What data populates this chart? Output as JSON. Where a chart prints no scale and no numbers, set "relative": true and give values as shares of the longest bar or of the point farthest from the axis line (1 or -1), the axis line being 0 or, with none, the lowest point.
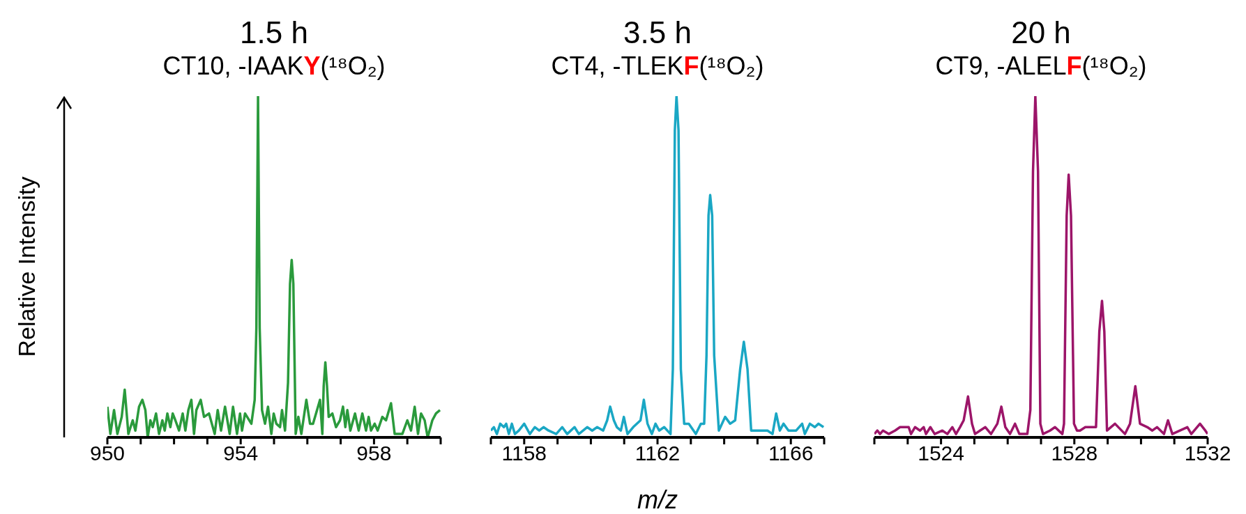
{
  "chart_data": [
    {
      "type": "line",
      "title": "1.5 h",
      "subtitle": "CT10, -IAAKY(¹⁸O₂)",
      "ylabel": "Relative Intensity",
      "relative": true,
      "xlim": [
        950,
        960
      ],
      "xticks": [
        950,
        {
          "value": 951,
          "label": null
        },
        {
          "value": 952,
          "label": null
        },
        {
          "value": 953,
          "label": null
        },
        954,
        {
          "value": 955,
          "label": null
        },
        {
          "value": 956,
          "label": null
        },
        {
          "value": 957,
          "label": null
        },
        958,
        {
          "value": 959,
          "label": null
        },
        {
          "value": 960,
          "label": null
        }
      ],
      "series": [
        {
          "color": "#2a9a3c",
          "x": [
            950.0,
            950.09,
            950.2,
            950.3,
            950.43,
            950.52,
            950.63,
            950.76,
            950.84,
            950.95,
            951.05,
            951.14,
            951.21,
            951.29,
            951.36,
            951.46,
            951.55,
            951.65,
            951.72,
            951.8,
            951.89,
            951.96,
            952.04,
            952.15,
            952.26,
            952.34,
            952.43,
            952.52,
            952.6,
            952.67,
            952.8,
            952.9,
            953.05,
            953.22,
            953.31,
            953.41,
            953.53,
            953.67,
            953.77,
            953.89,
            953.98,
            954.04,
            954.13,
            954.32,
            954.42,
            954.47,
            954.52,
            954.57,
            954.64,
            954.73,
            954.82,
            954.92,
            954.99,
            955.07,
            955.18,
            955.24,
            955.33,
            955.42,
            955.48,
            955.53,
            955.58,
            955.65,
            955.73,
            955.82,
            955.97,
            956.08,
            956.17,
            956.26,
            956.38,
            956.45,
            956.49,
            956.54,
            956.59,
            956.64,
            956.75,
            956.86,
            956.98,
            957.07,
            957.14,
            957.2,
            957.29,
            957.43,
            957.54,
            957.65,
            957.76,
            957.84,
            957.91,
            958.02,
            958.11,
            958.25,
            958.36,
            958.51,
            958.62,
            958.74,
            958.85,
            959.0,
            959.11,
            959.22,
            959.32,
            959.41,
            959.52,
            959.61,
            959.75,
            959.86,
            959.98
          ],
          "values": [
            0.09,
            0.01,
            0.08,
            0.01,
            0.06,
            0.14,
            0.01,
            0.05,
            0.02,
            0.09,
            0.11,
            0.08,
            0.0,
            0.05,
            0.03,
            0.07,
            0.01,
            0.05,
            0.02,
            0.07,
            0.03,
            0.07,
            0.05,
            0.02,
            0.07,
            0.02,
            0.08,
            0.11,
            0.01,
            0.08,
            0.11,
            0.06,
            0.07,
            0.01,
            0.08,
            0.02,
            0.09,
            0.01,
            0.09,
            0.01,
            0.07,
            0.02,
            0.07,
            0.04,
            0.11,
            0.32,
            1.0,
            0.32,
            0.08,
            0.04,
            0.09,
            0.01,
            0.07,
            0.04,
            0.03,
            0.08,
            0.02,
            0.16,
            0.45,
            0.52,
            0.45,
            0.01,
            0.06,
            0.01,
            0.11,
            0.04,
            0.04,
            0.07,
            0.11,
            0.01,
            0.15,
            0.22,
            0.15,
            0.06,
            0.07,
            0.03,
            0.05,
            0.09,
            0.03,
            0.08,
            0.02,
            0.07,
            0.02,
            0.07,
            0.02,
            0.06,
            0.02,
            0.04,
            0.02,
            0.06,
            0.05,
            0.1,
            0.01,
            0.01,
            0.01,
            0.05,
            0.02,
            0.09,
            0.01,
            0.07,
            0.05,
            0.0,
            0.05,
            0.07,
            0.08
          ]
        }
      ]
    },
    {
      "type": "line",
      "title": "3.5 h",
      "subtitle": "CT4, -TLEKF(¹⁸O₂)",
      "xlabel": "m/z",
      "relative": true,
      "xlim": [
        1157,
        1167
      ],
      "xticks": [
        {
          "value": 1157,
          "label": null
        },
        1158,
        {
          "value": 1159,
          "label": null
        },
        {
          "value": 1160,
          "label": null
        },
        {
          "value": 1161,
          "label": null
        },
        1162,
        {
          "value": 1163,
          "label": null
        },
        {
          "value": 1164,
          "label": null
        },
        {
          "value": 1165,
          "label": null
        },
        1166,
        {
          "value": 1167,
          "label": null
        }
      ],
      "series": [
        {
          "color": "#1aa7c4",
          "x": [
            1157.0,
            1157.09,
            1157.18,
            1157.28,
            1157.39,
            1157.46,
            1157.54,
            1157.63,
            1157.72,
            1157.84,
            1158.0,
            1158.17,
            1158.32,
            1158.45,
            1158.58,
            1158.73,
            1158.96,
            1159.14,
            1159.29,
            1159.51,
            1159.64,
            1159.89,
            1160.04,
            1160.19,
            1160.37,
            1160.49,
            1160.58,
            1160.69,
            1160.78,
            1160.9,
            1160.99,
            1161.1,
            1161.27,
            1161.49,
            1161.59,
            1161.7,
            1161.83,
            1161.94,
            1162.05,
            1162.2,
            1162.39,
            1162.46,
            1162.52,
            1162.57,
            1162.63,
            1162.7,
            1162.8,
            1162.94,
            1163.15,
            1163.3,
            1163.4,
            1163.47,
            1163.53,
            1163.58,
            1163.64,
            1163.7,
            1163.84,
            1164.03,
            1164.18,
            1164.33,
            1164.48,
            1164.59,
            1164.7,
            1164.81,
            1165.0,
            1165.3,
            1165.45,
            1165.56,
            1165.67,
            1165.78,
            1165.93,
            1166.16,
            1166.34,
            1166.42,
            1166.57,
            1166.72,
            1166.83,
            1166.98
          ],
          "values": [
            0.02,
            0.03,
            0.01,
            0.04,
            0.03,
            0.04,
            0.01,
            0.04,
            0.01,
            0.02,
            0.04,
            0.01,
            0.03,
            0.02,
            0.03,
            0.02,
            0.01,
            0.03,
            0.01,
            0.03,
            0.01,
            0.03,
            0.02,
            0.03,
            0.02,
            0.05,
            0.09,
            0.05,
            0.03,
            0.02,
            0.06,
            0.01,
            0.03,
            0.05,
            0.11,
            0.04,
            0.01,
            0.04,
            0.02,
            0.03,
            0.01,
            0.2,
            0.9,
            1.0,
            0.9,
            0.2,
            0.04,
            0.04,
            0.01,
            0.04,
            0.04,
            0.24,
            0.65,
            0.71,
            0.65,
            0.24,
            0.02,
            0.06,
            0.04,
            0.05,
            0.2,
            0.28,
            0.2,
            0.02,
            0.02,
            0.02,
            0.01,
            0.07,
            0.02,
            0.04,
            0.02,
            0.02,
            0.04,
            0.01,
            0.04,
            0.03,
            0.04,
            0.03
          ]
        }
      ]
    },
    {
      "type": "line",
      "title": "20 h",
      "subtitle": "CT9, -ALELF(¹⁸O₂)",
      "relative": true,
      "xlim": [
        1522,
        1532
      ],
      "xticks": [
        {
          "value": 1522,
          "label": null
        },
        {
          "value": 1523,
          "label": null
        },
        1524,
        {
          "value": 1525,
          "label": null
        },
        {
          "value": 1526,
          "label": null
        },
        {
          "value": 1527,
          "label": null
        },
        1528,
        {
          "value": 1529,
          "label": null
        },
        {
          "value": 1530,
          "label": null
        },
        {
          "value": 1531,
          "label": null
        },
        1532
      ],
      "series": [
        {
          "color": "#9c1569",
          "x": [
            1522.0,
            1522.09,
            1522.17,
            1522.26,
            1522.43,
            1522.62,
            1522.77,
            1523.03,
            1523.1,
            1523.22,
            1523.37,
            1523.48,
            1523.55,
            1523.68,
            1523.81,
            1524.04,
            1524.19,
            1524.34,
            1524.45,
            1524.57,
            1524.68,
            1524.81,
            1524.93,
            1525.02,
            1525.17,
            1525.33,
            1525.5,
            1525.69,
            1525.81,
            1525.93,
            1526.07,
            1526.22,
            1526.35,
            1526.59,
            1526.68,
            1526.76,
            1526.83,
            1526.91,
            1526.98,
            1527.06,
            1527.27,
            1527.42,
            1527.64,
            1527.69,
            1527.77,
            1527.83,
            1527.9,
            1527.99,
            1528.08,
            1528.17,
            1528.33,
            1528.47,
            1528.65,
            1528.75,
            1528.83,
            1528.9,
            1528.98,
            1529.22,
            1529.52,
            1529.67,
            1529.83,
            1529.97,
            1530.19,
            1530.34,
            1530.48,
            1530.69,
            1530.81,
            1530.94,
            1531.17,
            1531.39,
            1531.51,
            1531.77,
            1531.93,
            1532.0
          ],
          "values": [
            0.01,
            0.02,
            0.01,
            0.02,
            0.01,
            0.02,
            0.03,
            0.03,
            0.01,
            0.03,
            0.02,
            0.03,
            0.01,
            0.03,
            0.01,
            0.02,
            0.01,
            0.03,
            0.01,
            0.03,
            0.05,
            0.12,
            0.04,
            0.01,
            0.02,
            0.03,
            0.01,
            0.04,
            0.09,
            0.03,
            0.01,
            0.04,
            0.01,
            0.01,
            0.08,
            0.78,
            1.0,
            0.78,
            0.04,
            0.01,
            0.02,
            0.03,
            0.01,
            0.04,
            0.65,
            0.77,
            0.65,
            0.04,
            0.02,
            0.02,
            0.03,
            0.03,
            0.03,
            0.31,
            0.4,
            0.31,
            0.02,
            0.04,
            0.01,
            0.04,
            0.15,
            0.04,
            0.03,
            0.02,
            0.03,
            0.01,
            0.05,
            0.01,
            0.02,
            0.03,
            0.01,
            0.04,
            0.02,
            0.01
          ]
        }
      ]
    }
  ]
}
